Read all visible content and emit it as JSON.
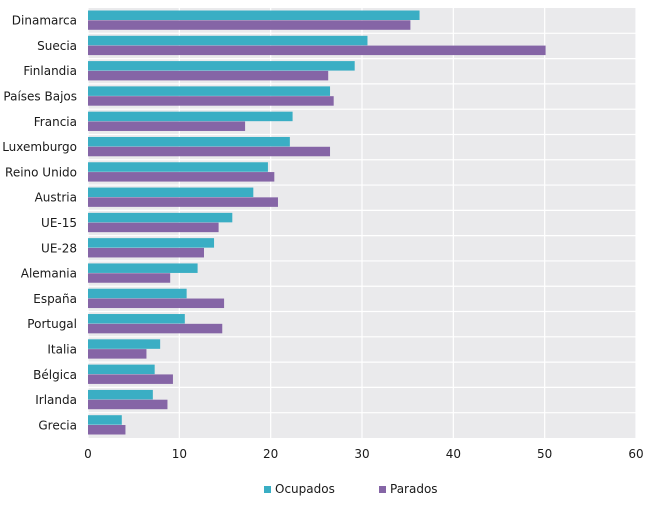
{
  "chart_data": {
    "type": "bar",
    "orientation": "horizontal",
    "categories": [
      "Dinamarca",
      "Suecia",
      "Finlandia",
      "Países Bajos",
      "Francia",
      "Luxemburgo",
      "Reino Unido",
      "Austria",
      "UE-15",
      "UE-28",
      "Alemania",
      "España",
      "Portugal",
      "Italia",
      "Bélgica",
      "Irlanda",
      "Grecia"
    ],
    "series": [
      {
        "name": "Ocupados",
        "color": "#3aaec4",
        "values": [
          36.3,
          30.6,
          29.2,
          26.5,
          22.4,
          22.1,
          19.7,
          18.1,
          15.8,
          13.8,
          12.0,
          10.8,
          10.6,
          7.9,
          7.3,
          7.1,
          3.7
        ]
      },
      {
        "name": "Parados",
        "color": "#8565a6",
        "values": [
          35.3,
          50.1,
          26.3,
          26.9,
          17.2,
          26.5,
          20.4,
          20.8,
          14.3,
          12.7,
          9.0,
          14.9,
          14.7,
          6.4,
          9.3,
          8.7,
          4.1
        ]
      }
    ],
    "xlim": [
      0,
      60
    ],
    "xticks": [
      0,
      10,
      20,
      30,
      40,
      50,
      60
    ],
    "xlabel": "",
    "ylabel": "",
    "title": "",
    "grid": true,
    "legend_position": "bottom"
  }
}
